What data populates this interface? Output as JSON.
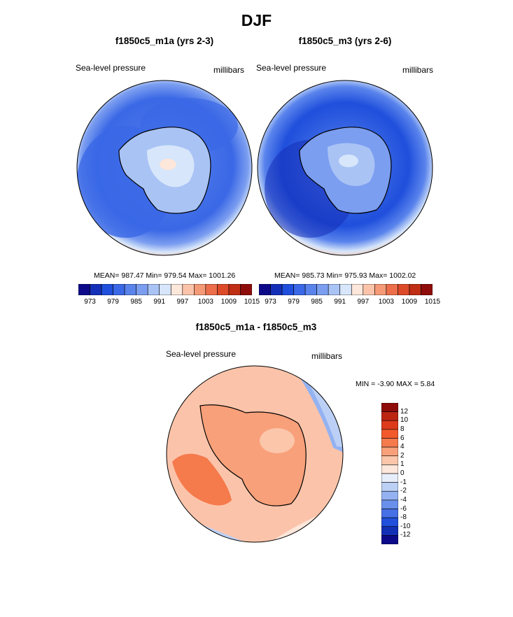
{
  "figure": {
    "title": "DJF",
    "units": "millibars",
    "variable": "Sea-level pressure"
  },
  "panels": [
    {
      "title": "f1850c5_m1a (yrs 2-3)",
      "left_label": "Sea-level pressure",
      "right_label": "millibars",
      "stats": "MEAN= 987.47  Min= 979.54  Max= 1001.26"
    },
    {
      "title": "f1850c5_m3 (yrs 2-6)",
      "left_label": "Sea-level pressure",
      "right_label": "millibars",
      "stats": "MEAN= 985.73  Min= 975.93  Max= 1002.02"
    }
  ],
  "diff_panel": {
    "title": "f1850c5_m1a - f1850c5_m3",
    "left_label": "Sea-level pressure",
    "right_label": "millibars",
    "minmax": "MIN =  -3.90 MAX =   5.84"
  },
  "colorbar_h": {
    "colors": [
      "#0d0a8a",
      "#1530b8",
      "#1f4fdc",
      "#3a68e6",
      "#5a84ec",
      "#7c9ef0",
      "#a9c3f5",
      "#d7e6fa",
      "#fde6da",
      "#fbc4aa",
      "#f59a76",
      "#ec6e4a",
      "#dd4a28",
      "#c02e14",
      "#8e0d0a"
    ],
    "ticks": [
      "973",
      "979",
      "985",
      "991",
      "997",
      "1003",
      "1009",
      "1015"
    ]
  },
  "colorbar_v": {
    "colors": [
      "#8e0d0a",
      "#bb2512",
      "#dd3a1c",
      "#f25a2c",
      "#f57a4c",
      "#f8a07a",
      "#fbc6aa",
      "#fde6da",
      "#e6eefb",
      "#bcd0f6",
      "#94b2f1",
      "#6a90ec",
      "#4670e6",
      "#2050dc",
      "#1230b5",
      "#0d0a8a"
    ],
    "ticks": [
      "12",
      "10",
      "8",
      "6",
      "4",
      "2",
      "1",
      "0",
      "-1",
      "-2",
      "-4",
      "-6",
      "-8",
      "-10",
      "-12"
    ]
  },
  "chart_data": [
    {
      "type": "heatmap",
      "title": "f1850c5_m1a (yrs 2-3)",
      "projection": "south polar stereographic",
      "variable": "Sea-level pressure",
      "units": "millibars",
      "mean": 987.47,
      "min": 979.54,
      "max": 1001.26,
      "levels": [
        973,
        976,
        979,
        982,
        985,
        988,
        991,
        994,
        997,
        1000,
        1003,
        1006,
        1009,
        1012,
        1015
      ]
    },
    {
      "type": "heatmap",
      "title": "f1850c5_m3 (yrs 2-6)",
      "projection": "south polar stereographic",
      "variable": "Sea-level pressure",
      "units": "millibars",
      "mean": 985.73,
      "min": 975.93,
      "max": 1002.02,
      "levels": [
        973,
        976,
        979,
        982,
        985,
        988,
        991,
        994,
        997,
        1000,
        1003,
        1006,
        1009,
        1012,
        1015
      ]
    },
    {
      "type": "heatmap",
      "title": "f1850c5_m1a - f1850c5_m3",
      "projection": "south polar stereographic",
      "variable": "Sea-level pressure",
      "units": "millibars",
      "min": -3.9,
      "max": 5.84,
      "levels": [
        -12,
        -10,
        -8,
        -6,
        -4,
        -2,
        -1,
        0,
        1,
        2,
        4,
        6,
        8,
        10,
        12
      ]
    }
  ]
}
